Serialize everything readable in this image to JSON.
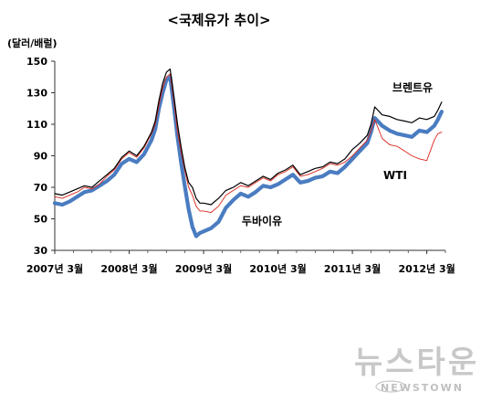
{
  "chart_data": {
    "type": "line",
    "title": "<국제유가 추이>",
    "ylabel": "(달러/배럴)",
    "xlabel": "",
    "ylim": [
      30,
      150
    ],
    "xlim": [
      2007.0,
      2012.25
    ],
    "yticks": [
      "150",
      "130",
      "110",
      "90",
      "70",
      "50",
      "30"
    ],
    "xticks": [
      "2007년  3월",
      "2008년  3월",
      "2009년  3월",
      "2010년  3월",
      "2011년  3월",
      "2012년  3월"
    ],
    "grid": false,
    "series": [
      {
        "name": "브렌트유",
        "color": "#000000",
        "x": [
          2007.0,
          2007.1,
          2007.2,
          2007.3,
          2007.4,
          2007.5,
          2007.6,
          2007.7,
          2007.8,
          2007.9,
          2008.0,
          2008.1,
          2008.2,
          2008.3,
          2008.35,
          2008.4,
          2008.45,
          2008.5,
          2008.55,
          2008.6,
          2008.65,
          2008.7,
          2008.75,
          2008.8,
          2008.85,
          2008.9,
          2008.95,
          2009.0,
          2009.1,
          2009.2,
          2009.3,
          2009.4,
          2009.5,
          2009.6,
          2009.7,
          2009.8,
          2009.9,
          2010.0,
          2010.1,
          2010.2,
          2010.3,
          2010.4,
          2010.5,
          2010.6,
          2010.7,
          2010.8,
          2010.9,
          2011.0,
          2011.1,
          2011.2,
          2011.25,
          2011.3,
          2011.4,
          2011.5,
          2011.6,
          2011.7,
          2011.8,
          2011.9,
          2012.0,
          2012.1,
          2012.15,
          2012.2
        ],
        "values": [
          66,
          65,
          67,
          69,
          71,
          70,
          74,
          78,
          82,
          89,
          93,
          90,
          96,
          105,
          112,
          125,
          136,
          143,
          145,
          128,
          110,
          95,
          82,
          73,
          70,
          63,
          60,
          60,
          59,
          63,
          68,
          70,
          73,
          71,
          74,
          77,
          75,
          79,
          81,
          84,
          78,
          80,
          82,
          83,
          86,
          85,
          88,
          94,
          98,
          103,
          110,
          121,
          116,
          115,
          113,
          112,
          111,
          114,
          113,
          115,
          119,
          124
        ]
      },
      {
        "name": "WTI",
        "color": "#d9261c",
        "x": [
          2007.0,
          2007.1,
          2007.2,
          2007.3,
          2007.4,
          2007.5,
          2007.6,
          2007.7,
          2007.8,
          2007.9,
          2008.0,
          2008.1,
          2008.2,
          2008.3,
          2008.35,
          2008.4,
          2008.45,
          2008.5,
          2008.55,
          2008.6,
          2008.65,
          2008.7,
          2008.75,
          2008.8,
          2008.85,
          2008.9,
          2008.95,
          2009.0,
          2009.1,
          2009.2,
          2009.3,
          2009.4,
          2009.5,
          2009.6,
          2009.7,
          2009.8,
          2009.9,
          2010.0,
          2010.1,
          2010.2,
          2010.3,
          2010.4,
          2010.5,
          2010.6,
          2010.7,
          2010.8,
          2010.9,
          2011.0,
          2011.1,
          2011.2,
          2011.25,
          2011.3,
          2011.4,
          2011.5,
          2011.6,
          2011.7,
          2011.8,
          2011.9,
          2012.0,
          2012.1,
          2012.15,
          2012.2
        ],
        "values": [
          64,
          63,
          65,
          67,
          70,
          69,
          72,
          77,
          81,
          88,
          92,
          89,
          95,
          104,
          110,
          122,
          133,
          140,
          142,
          125,
          105,
          92,
          80,
          70,
          65,
          58,
          55,
          55,
          54,
          58,
          65,
          68,
          71,
          70,
          73,
          76,
          74,
          78,
          80,
          83,
          77,
          78,
          80,
          82,
          85,
          84,
          86,
          90,
          95,
          100,
          106,
          113,
          101,
          97,
          96,
          93,
          90,
          88,
          87,
          100,
          104,
          105
        ]
      },
      {
        "name": "두바이유",
        "color": "#4a7cc1",
        "x": [
          2007.0,
          2007.1,
          2007.2,
          2007.3,
          2007.4,
          2007.5,
          2007.6,
          2007.7,
          2007.8,
          2007.9,
          2008.0,
          2008.1,
          2008.2,
          2008.3,
          2008.35,
          2008.4,
          2008.45,
          2008.5,
          2008.55,
          2008.6,
          2008.65,
          2008.7,
          2008.75,
          2008.8,
          2008.85,
          2008.9,
          2008.95,
          2009.0,
          2009.1,
          2009.2,
          2009.3,
          2009.4,
          2009.5,
          2009.6,
          2009.7,
          2009.8,
          2009.9,
          2010.0,
          2010.1,
          2010.2,
          2010.3,
          2010.4,
          2010.5,
          2010.6,
          2010.7,
          2010.8,
          2010.9,
          2011.0,
          2011.1,
          2011.2,
          2011.25,
          2011.3,
          2011.4,
          2011.5,
          2011.6,
          2011.7,
          2011.8,
          2011.9,
          2012.0,
          2012.1,
          2012.15,
          2012.2
        ],
        "values": [
          60,
          59,
          61,
          64,
          67,
          68,
          71,
          74,
          78,
          85,
          88,
          86,
          91,
          100,
          107,
          120,
          130,
          138,
          140,
          122,
          102,
          85,
          70,
          56,
          45,
          39,
          41,
          42,
          44,
          48,
          57,
          62,
          66,
          64,
          67,
          71,
          70,
          72,
          75,
          78,
          73,
          74,
          76,
          77,
          80,
          79,
          83,
          88,
          93,
          98,
          105,
          114,
          109,
          106,
          104,
          103,
          102,
          106,
          105,
          109,
          113,
          118
        ]
      }
    ],
    "annotations": [
      {
        "text": "브렌트유",
        "series": "브렌트유"
      },
      {
        "text": "WTI",
        "series": "WTI"
      },
      {
        "text": "두바이유",
        "series": "두바이유"
      }
    ]
  },
  "watermark": {
    "text": "뉴스타운",
    "sub": "NEWSTOWN"
  }
}
